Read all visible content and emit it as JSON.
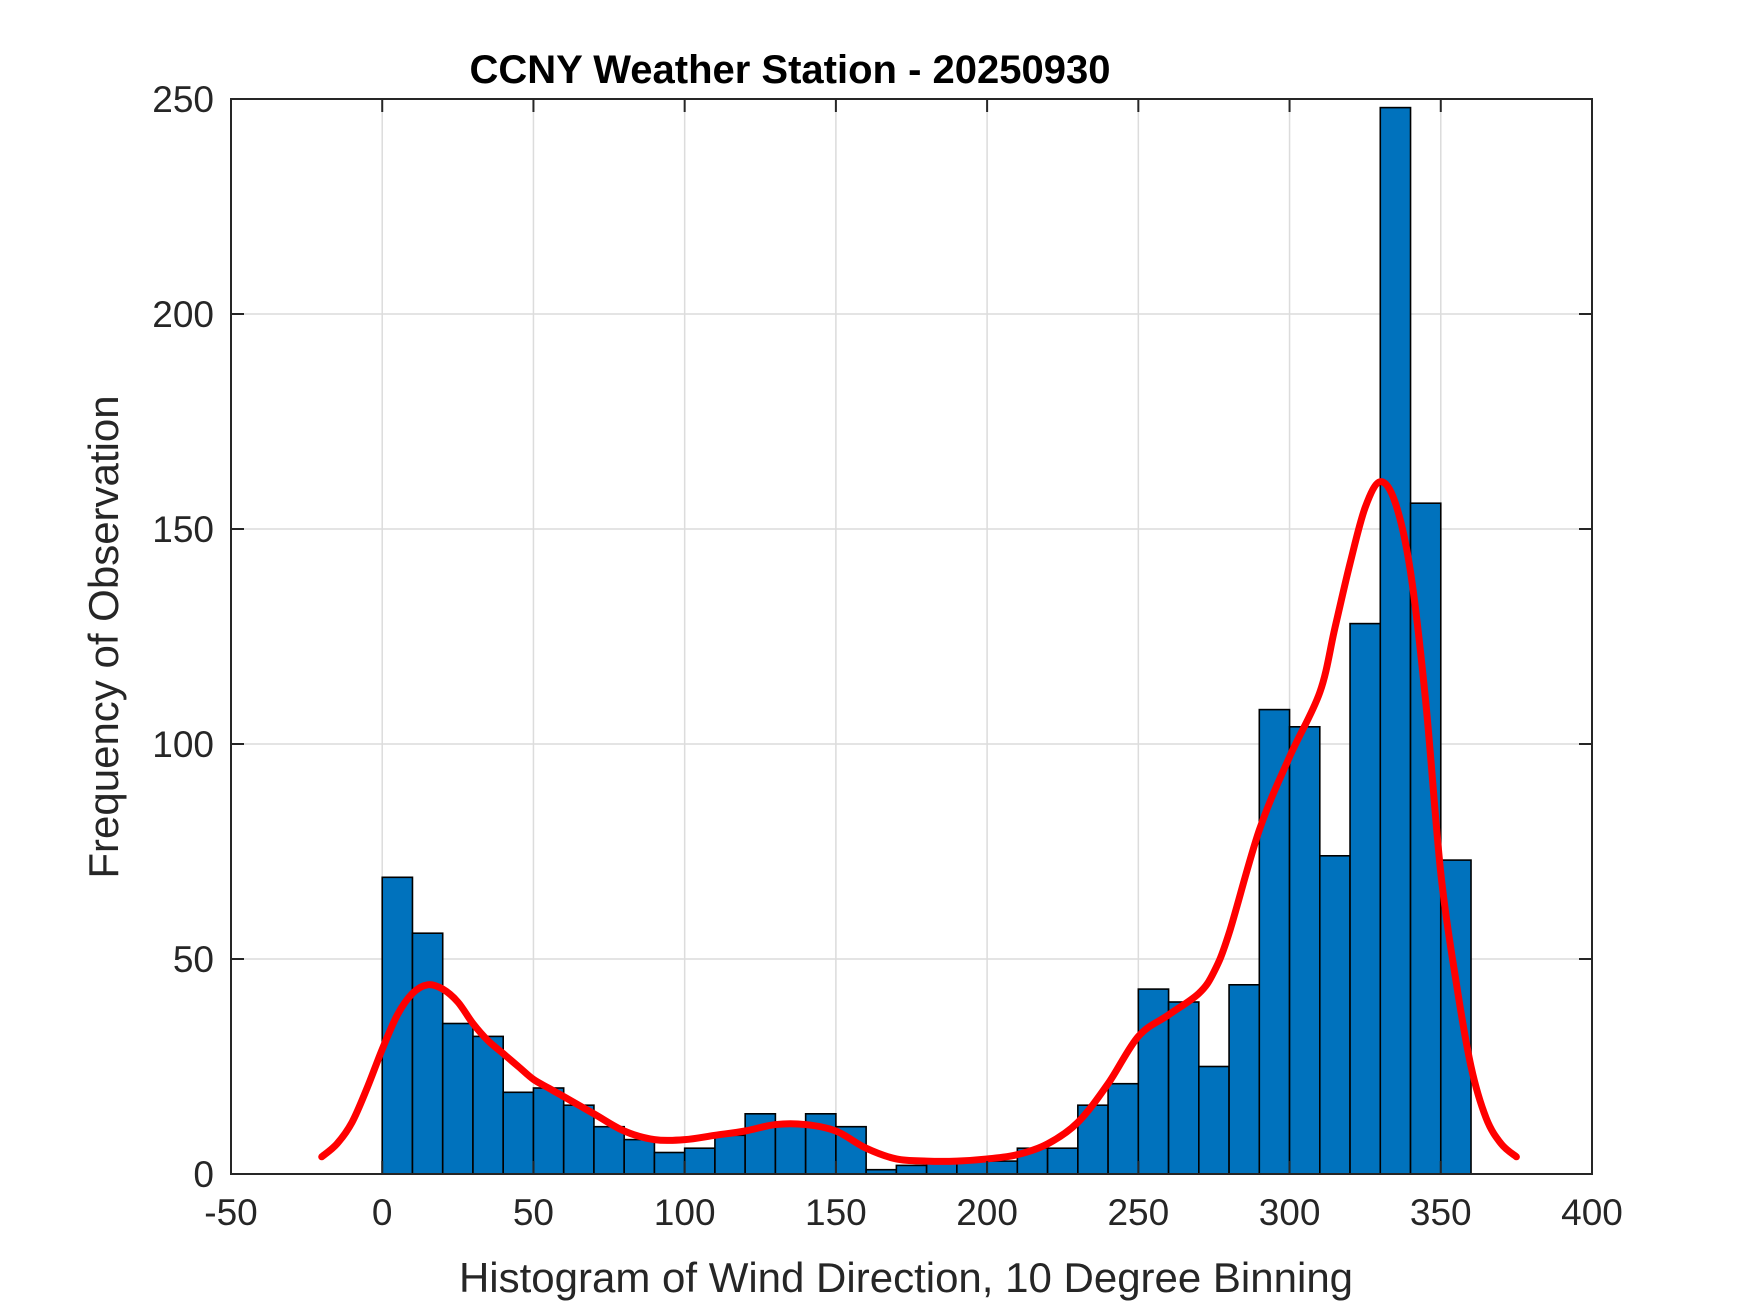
{
  "chart_data": {
    "type": "bar",
    "title": "CCNY Weather Station - 20250930",
    "xlabel": "Histogram of Wind Direction, 10 Degree Binning",
    "ylabel": "Frequency of Observation",
    "xlim": [
      -50,
      400
    ],
    "ylim": [
      0,
      250
    ],
    "xticks": [
      "-50",
      "0",
      "50",
      "100",
      "150",
      "200",
      "250",
      "300",
      "350",
      "400"
    ],
    "yticks": [
      "0",
      "50",
      "100",
      "150",
      "200",
      "250"
    ],
    "grid": true,
    "bar_color": "#0072BD",
    "bin_width": 10,
    "bin_edges_start": [
      0,
      10,
      20,
      30,
      40,
      50,
      60,
      70,
      80,
      90,
      100,
      110,
      120,
      130,
      140,
      150,
      160,
      170,
      180,
      190,
      200,
      210,
      220,
      230,
      240,
      250,
      260,
      270,
      280,
      290,
      300,
      310,
      320,
      330,
      340,
      350
    ],
    "values": [
      69,
      56,
      35,
      32,
      19,
      20,
      16,
      11,
      8,
      5,
      6,
      9,
      14,
      12,
      14,
      11,
      1,
      2,
      3,
      3,
      3,
      6,
      6,
      16,
      21,
      43,
      40,
      25,
      44,
      108,
      104,
      74,
      128,
      248,
      156,
      73
    ],
    "series": [
      {
        "name": "density curve",
        "type": "line",
        "color": "#FF0000",
        "x": [
          -20,
          -15,
          -10,
          -5,
          0,
          5,
          10,
          15,
          20,
          25,
          30,
          35,
          40,
          45,
          50,
          55,
          60,
          70,
          80,
          90,
          100,
          110,
          120,
          130,
          140,
          150,
          160,
          170,
          180,
          190,
          200,
          210,
          220,
          230,
          240,
          250,
          260,
          270,
          275,
          280,
          290,
          300,
          310,
          315,
          320,
          325,
          330,
          335,
          340,
          345,
          350,
          355,
          360,
          365,
          370,
          375
        ],
        "y": [
          4,
          7,
          12,
          20,
          29,
          37,
          42,
          44,
          43,
          40,
          35,
          31,
          28,
          25,
          22,
          20,
          18,
          14,
          10,
          8,
          8,
          9,
          10,
          11.5,
          11.5,
          10,
          6,
          3.5,
          3,
          3,
          3.5,
          4.5,
          7,
          12,
          21,
          32,
          37,
          42,
          47,
          56,
          80,
          97,
          112,
          127,
          142,
          155,
          161,
          156,
          140,
          110,
          70,
          45,
          25,
          13,
          7,
          4
        ]
      }
    ]
  }
}
